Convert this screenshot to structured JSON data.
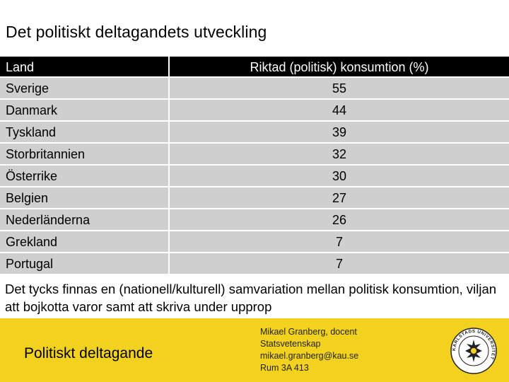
{
  "slide": {
    "title": "Det politiskt deltagandets utveckling"
  },
  "table": {
    "headers": [
      "Land",
      "Riktad (politisk) konsumtion (%)"
    ],
    "rows": [
      {
        "country": "Sverige",
        "value": "55"
      },
      {
        "country": "Danmark",
        "value": "44"
      },
      {
        "country": "Tyskland",
        "value": "39"
      },
      {
        "country": "Storbritannien",
        "value": "32"
      },
      {
        "country": "Österrike",
        "value": "30"
      },
      {
        "country": "Belgien",
        "value": "27"
      },
      {
        "country": "Nederländerna",
        "value": "26"
      },
      {
        "country": "Grekland",
        "value": "7"
      },
      {
        "country": "Portugal",
        "value": "7"
      }
    ]
  },
  "note": "Det tycks finnas en (nationell/kulturell) samvariation mellan politisk konsumtion, viljan att bojkotta varor samt att skriva under upprop",
  "footer": {
    "title": "Politiskt deltagande",
    "contact": [
      "Mikael Granberg, docent",
      "Statsvetenskap",
      "mikael.granberg@kau.se",
      "Rum 3A 413"
    ],
    "logo_text": "KARLSTADS UNIVERSITET",
    "colors": {
      "band": "#f2d21f",
      "header": "#000000",
      "row": "#cfcfcf"
    }
  }
}
